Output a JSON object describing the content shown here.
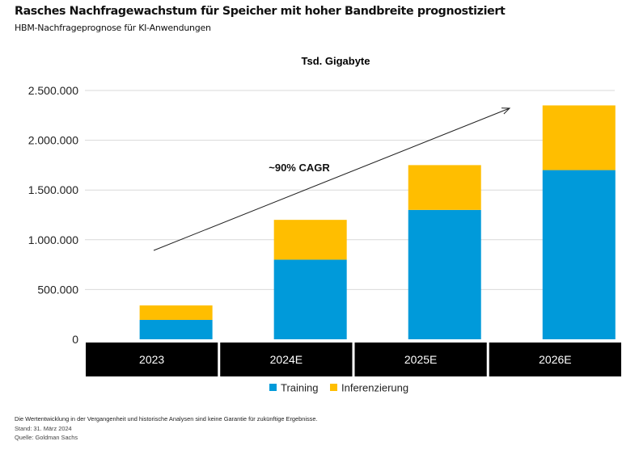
{
  "header": {
    "title": "Rasches Nachfragewachstum für Speicher mit hoher Bandbreite prognostiziert",
    "subtitle": "HBM-Nachfrageprognose für KI-Anwendungen"
  },
  "chart_data": {
    "type": "bar",
    "stacked": true,
    "title": "Rasches Nachfragewachstum für Speicher mit hoher Bandbreite prognostiziert",
    "subtitle": "HBM-Nachfrageprognose für KI-Anwendungen",
    "unit_label": "Tsd. Gigabyte",
    "xlabel": "",
    "ylabel": "Tsd. Gigabyte",
    "categories": [
      "2023",
      "2024E",
      "2025E",
      "2026E"
    ],
    "series": [
      {
        "name": "Training",
        "color": "#009ADA",
        "values": [
          195000,
          800000,
          1300000,
          1700000
        ]
      },
      {
        "name": "Inferenzierung",
        "color": "#FFBE00",
        "values": [
          145000,
          400000,
          450000,
          650000
        ]
      }
    ],
    "ylim": [
      0,
      2500000
    ],
    "yticks": [
      0,
      500000,
      1000000,
      1500000,
      2000000,
      2500000
    ],
    "ytick_labels": [
      "0",
      "500.000",
      "1.000.000",
      "1.500.000",
      "2.000.000",
      "2.500.000"
    ],
    "grid": true,
    "legend_position": "bottom-center",
    "annotations": [
      {
        "text": "~90% CAGR",
        "type": "trend-arrow",
        "from_category": "2023",
        "to_category": "2026E"
      }
    ]
  },
  "footnotes": {
    "disclaimer": "Die Wertentwicklung in der Vergangenheit und historische Analysen sind keine Garantie für zukünftige Ergebnisse.",
    "date": "Stand: 31. März 2024",
    "source": "Quelle: Goldman Sachs"
  }
}
